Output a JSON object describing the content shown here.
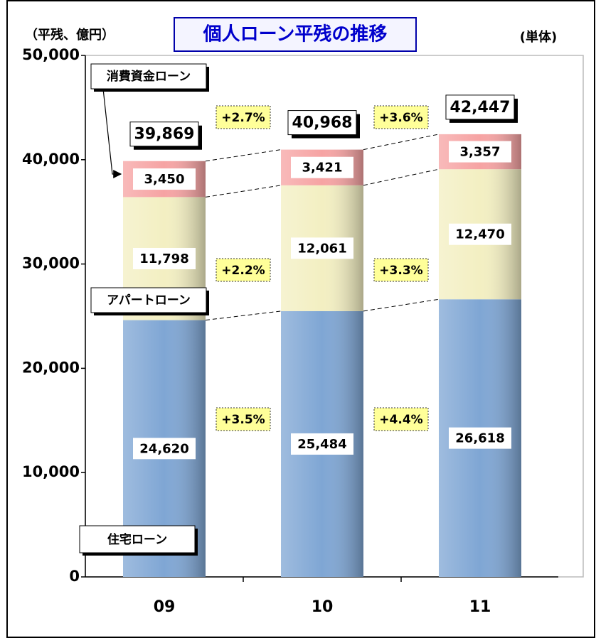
{
  "chart_data": {
    "type": "stacked_bar",
    "title": "個人ローン平残の推移",
    "unit_label": "（平残、億円）",
    "scope_label": "(単体)",
    "categories": [
      "09",
      "10",
      "11"
    ],
    "series": [
      {
        "name": "住宅ローン",
        "color": "#7fa6d4",
        "values": [
          24620,
          25484,
          26618
        ],
        "value_labels": [
          "24,620",
          "25,484",
          "26,618"
        ]
      },
      {
        "name": "アパートローン",
        "color": "#f3efc2",
        "values": [
          11798,
          12061,
          12470
        ],
        "value_labels": [
          "11,798",
          "12,061",
          "12,470"
        ]
      },
      {
        "name": "消費資金ローン",
        "color": "#f6a3a3",
        "values": [
          3450,
          3421,
          3357
        ],
        "value_labels": [
          "3,450",
          "3,421",
          "3,357"
        ]
      }
    ],
    "totals": [
      39869,
      40968,
      42447
    ],
    "total_labels": [
      "39,869",
      "40,968",
      "42,447"
    ],
    "growth_labels": [
      [
        "+3.5%",
        "+2.2%",
        "+2.7%"
      ],
      [
        "+4.4%",
        "+3.3%",
        "+3.6%"
      ]
    ],
    "ylim": [
      0,
      50000
    ],
    "yticks": [
      0,
      {
        "value": 10000,
        "label": "10,000"
      },
      {
        "value": 20000,
        "label": "20,000"
      },
      {
        "value": 30000,
        "label": "30,000"
      },
      {
        "value": 40000,
        "label": "40,000"
      },
      {
        "value": 50000,
        "label": "50,000"
      }
    ]
  }
}
